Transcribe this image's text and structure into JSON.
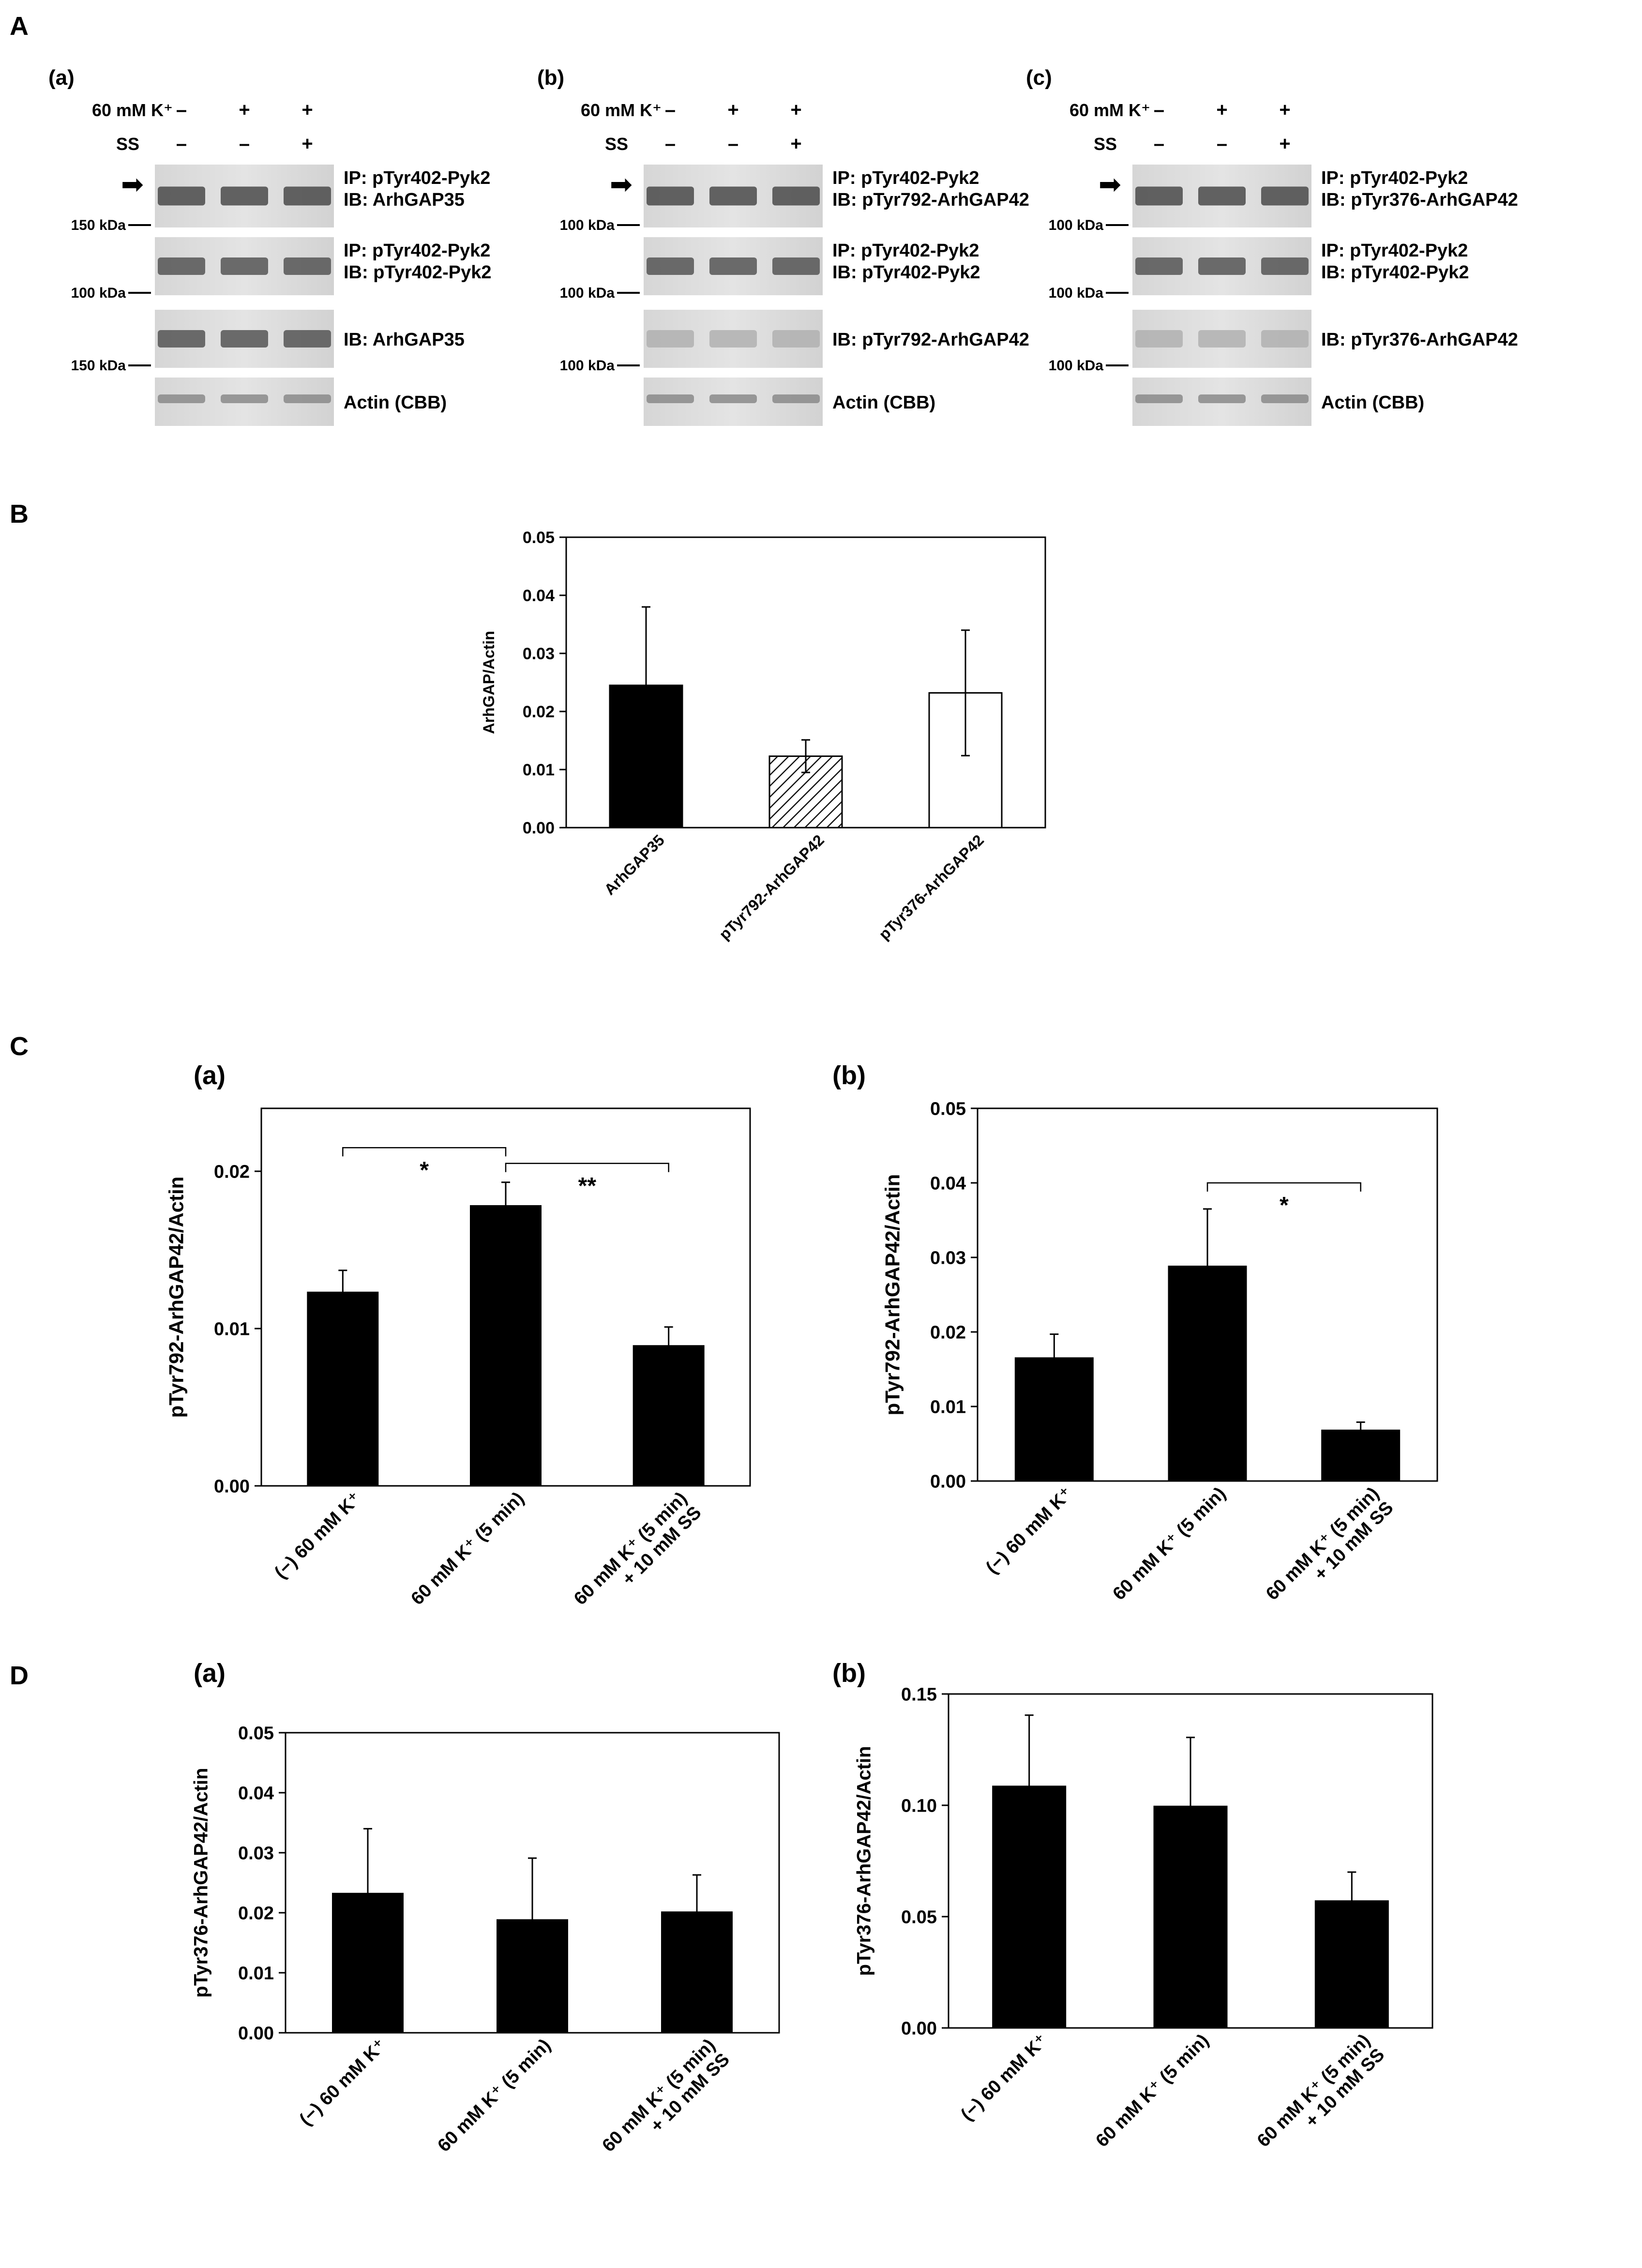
{
  "panels": {
    "A": "A",
    "B": "B",
    "C": "C",
    "D": "D"
  },
  "blots": [
    {
      "sub": "(a)",
      "treatment_label": "60 mM K⁺",
      "ss_label": "SS",
      "k_signs": [
        "–",
        "+",
        "+"
      ],
      "ss_signs": [
        "–",
        "–",
        "+"
      ],
      "rows": [
        {
          "ip": "IP: pTyr402-Pyk2",
          "ib": "IB: ArhGAP35",
          "marker": "150 kDa",
          "arrow": true
        },
        {
          "ip": "IP: pTyr402-Pyk2",
          "ib": "IB: pTyr402-Pyk2",
          "marker": "100 kDa",
          "arrow": false
        },
        {
          "ip": "",
          "ib": "IB: ArhGAP35",
          "marker": "150 kDa",
          "arrow": false
        },
        {
          "ip": "",
          "ib": "Actin (CBB)",
          "marker": "",
          "arrow": false
        }
      ]
    },
    {
      "sub": "(b)",
      "treatment_label": "60 mM K⁺",
      "ss_label": "SS",
      "k_signs": [
        "–",
        "+",
        "+"
      ],
      "ss_signs": [
        "–",
        "–",
        "+"
      ],
      "rows": [
        {
          "ip": "IP: pTyr402-Pyk2",
          "ib": "IB: pTyr792-ArhGAP42",
          "marker": "100 kDa",
          "arrow": true
        },
        {
          "ip": "IP: pTyr402-Pyk2",
          "ib": "IB: pTyr402-Pyk2",
          "marker": "100 kDa",
          "arrow": false
        },
        {
          "ip": "",
          "ib": "IB: pTyr792-ArhGAP42",
          "marker": "100 kDa",
          "arrow": false
        },
        {
          "ip": "",
          "ib": "Actin (CBB)",
          "marker": "",
          "arrow": false
        }
      ]
    },
    {
      "sub": "(c)",
      "treatment_label": "60 mM K⁺",
      "ss_label": "SS",
      "k_signs": [
        "–",
        "+",
        "+"
      ],
      "ss_signs": [
        "–",
        "–",
        "+"
      ],
      "rows": [
        {
          "ip": "IP: pTyr402-Pyk2",
          "ib": "IB: pTyr376-ArhGAP42",
          "marker": "100 kDa",
          "arrow": true
        },
        {
          "ip": "IP: pTyr402-Pyk2",
          "ib": "IB: pTyr402-Pyk2",
          "marker": "100 kDa",
          "arrow": false
        },
        {
          "ip": "",
          "ib": "IB: pTyr376-ArhGAP42",
          "marker": "100 kDa",
          "arrow": false
        },
        {
          "ip": "",
          "ib": "Actin (CBB)",
          "marker": "",
          "arrow": false
        }
      ]
    }
  ],
  "chart_data": [
    {
      "id": "B",
      "type": "bar",
      "title": "",
      "ylabel": "ArhGAP/Actin",
      "ylim": [
        0,
        0.05
      ],
      "yticks": [
        "0.00",
        "0.01",
        "0.02",
        "0.03",
        "0.04",
        "0.05"
      ],
      "categories": [
        "ArhGAP35",
        "pTyr792-ArhGAP42",
        "pTyr376-ArhGAP42"
      ],
      "values": [
        0.0245,
        0.0123,
        0.0232
      ],
      "errors": [
        0.0135,
        0.0028,
        0.0108
      ],
      "fills": [
        "black",
        "hatch",
        "white"
      ],
      "significance": []
    },
    {
      "id": "C-a",
      "type": "bar",
      "subtitle": "(a)",
      "ylabel": "pTyr792-ArhGAP42/Actin",
      "ylim": [
        0,
        0.024
      ],
      "yticks": [
        "0.00",
        "0.01",
        "0.02"
      ],
      "ytick_values": [
        0,
        0.01,
        0.02
      ],
      "categories": [
        [
          "(−) 60 mM K⁺"
        ],
        [
          "60 mM K⁺ (5 min)"
        ],
        [
          "60 mM K⁺ (5 min)",
          "+ 10 mM SS"
        ]
      ],
      "values": [
        0.0123,
        0.0178,
        0.0089
      ],
      "errors": [
        0.0014,
        0.0015,
        0.0012
      ],
      "fills": [
        "black",
        "black",
        "black"
      ],
      "significance": [
        {
          "from": 0,
          "to": 1,
          "label": "*",
          "level": 0.0215
        },
        {
          "from": 1,
          "to": 2,
          "label": "**",
          "level": 0.0205
        }
      ]
    },
    {
      "id": "C-b",
      "type": "bar",
      "subtitle": "(b)",
      "ylabel": "pTyr792-ArhGAP42/Actin",
      "ylim": [
        0,
        0.05
      ],
      "yticks": [
        "0.00",
        "0.01",
        "0.02",
        "0.03",
        "0.04",
        "0.05"
      ],
      "categories": [
        [
          "(−) 60 mM K⁺"
        ],
        [
          "60 mM K⁺ (5 min)"
        ],
        [
          "60 mM K⁺ (5 min)",
          "+ 10 mM SS"
        ]
      ],
      "values": [
        0.0165,
        0.0288,
        0.0068
      ],
      "errors": [
        0.0032,
        0.0077,
        0.0011
      ],
      "fills": [
        "black",
        "black",
        "black"
      ],
      "significance": [
        {
          "from": 1,
          "to": 2,
          "label": "*",
          "level": 0.04
        }
      ]
    },
    {
      "id": "D-a",
      "type": "bar",
      "subtitle": "(a)",
      "ylabel": "pTyr376-ArhGAP42/Actin",
      "ylim": [
        0,
        0.05
      ],
      "yticks": [
        "0.00",
        "0.01",
        "0.02",
        "0.03",
        "0.04",
        "0.05"
      ],
      "categories": [
        [
          "(−) 60 mM K⁺"
        ],
        [
          "60 mM K⁺ (5 min)"
        ],
        [
          "60 mM K⁺ (5 min)",
          "+ 10 mM SS"
        ]
      ],
      "values": [
        0.0232,
        0.0188,
        0.0201
      ],
      "errors": [
        0.0108,
        0.0103,
        0.0062
      ],
      "fills": [
        "black",
        "black",
        "black"
      ],
      "significance": []
    },
    {
      "id": "D-b",
      "type": "bar",
      "subtitle": "(b)",
      "ylabel": "pTyr376-ArhGAP42/Actin",
      "ylim": [
        0,
        0.15
      ],
      "yticks": [
        "0.00",
        "0.05",
        "0.10",
        "0.15"
      ],
      "categories": [
        [
          "(−) 60 mM K⁺"
        ],
        [
          "60 mM K⁺ (5 min)"
        ],
        [
          "60 mM K⁺ (5 min)",
          "+ 10 mM SS"
        ]
      ],
      "values": [
        0.1085,
        0.0995,
        0.057
      ],
      "errors": [
        0.032,
        0.031,
        0.013
      ],
      "fills": [
        "black",
        "black",
        "black"
      ],
      "significance": []
    }
  ]
}
